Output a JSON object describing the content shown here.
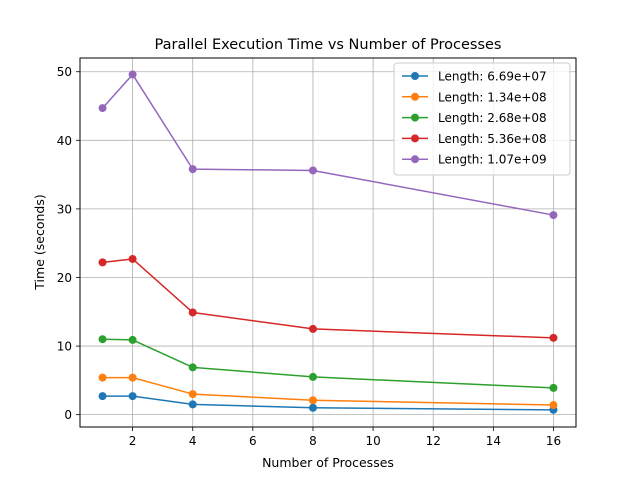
{
  "chart_data": {
    "type": "line",
    "title": "Parallel Execution Time vs Number of Processes",
    "xlabel": "Number of Processes",
    "ylabel": "Time (seconds)",
    "xlim": [
      0.25,
      16.75
    ],
    "ylim": [
      -1.8,
      52.0
    ],
    "xticks": [
      2,
      4,
      6,
      8,
      10,
      12,
      14,
      16
    ],
    "yticks": [
      0,
      10,
      20,
      30,
      40,
      50
    ],
    "grid": true,
    "legend_position": "top-right",
    "x": [
      1,
      2,
      4,
      8,
      16
    ],
    "series": [
      {
        "name": "Length: 6.69e+07",
        "color": "#1f77b4",
        "values": [
          2.7,
          2.7,
          1.5,
          1.0,
          0.7
        ]
      },
      {
        "name": "Length: 1.34e+08",
        "color": "#ff7f0e",
        "values": [
          5.4,
          5.4,
          3.0,
          2.1,
          1.4
        ]
      },
      {
        "name": "Length: 2.68e+08",
        "color": "#2ca02c",
        "values": [
          11.0,
          10.9,
          6.9,
          5.5,
          3.9
        ]
      },
      {
        "name": "Length: 5.36e+08",
        "color": "#d62728",
        "values": [
          22.2,
          22.7,
          14.9,
          12.5,
          11.2
        ]
      },
      {
        "name": "Length: 1.07e+09",
        "color": "#9467bd",
        "values": [
          44.7,
          49.6,
          35.8,
          35.6,
          29.1
        ]
      }
    ]
  }
}
